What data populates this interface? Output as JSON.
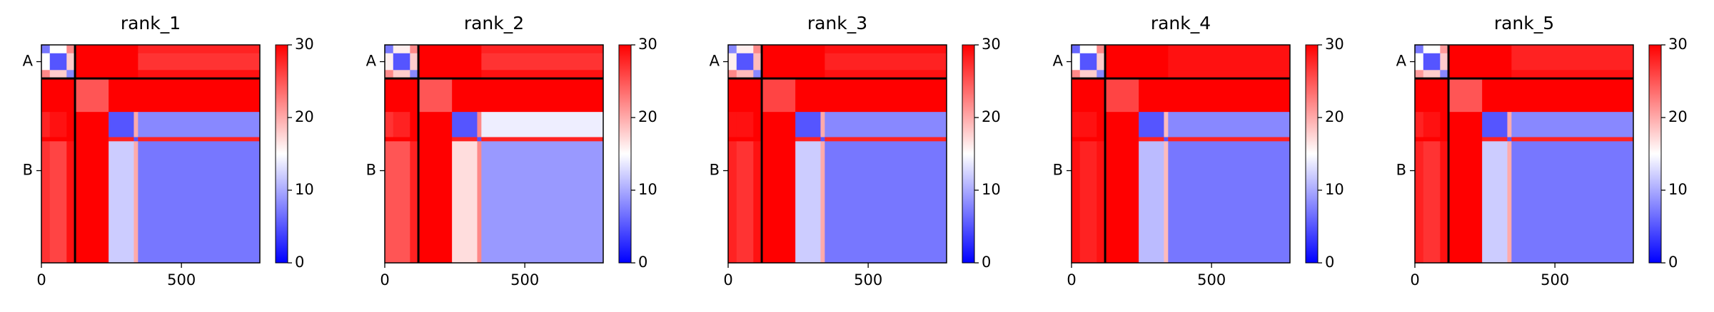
{
  "chart_data": [
    {
      "type": "heatmap",
      "title": "rank_1",
      "edges": [
        0,
        30,
        90,
        120,
        240,
        330,
        345,
        780
      ],
      "xlim": [
        0,
        780
      ],
      "ylim": [
        0,
        780
      ],
      "xticks": [
        0,
        500
      ],
      "yticks": [
        {
          "value": 60,
          "label": "A"
        },
        {
          "value": 450,
          "label": "B"
        }
      ],
      "chain_breaks": [
        120
      ],
      "clim": [
        0,
        30
      ],
      "cticks": [
        0,
        10,
        20,
        30
      ],
      "colormap": "bwr",
      "matrix": [
        [
          7,
          15,
          22,
          30,
          30,
          30,
          28
        ],
        [
          15,
          5,
          18,
          30,
          30,
          30,
          27
        ],
        [
          22,
          18,
          8,
          30,
          30,
          30,
          29
        ],
        [
          30,
          30,
          30,
          25,
          30,
          30,
          30
        ],
        [
          28,
          29,
          30,
          30,
          5,
          20,
          8
        ],
        [
          30,
          30,
          30,
          30,
          28,
          5,
          28
        ],
        [
          27,
          26,
          29,
          30,
          12,
          20,
          7
        ]
      ]
    },
    {
      "type": "heatmap",
      "title": "rank_2",
      "edges": [
        0,
        30,
        90,
        120,
        240,
        330,
        345,
        780
      ],
      "xlim": [
        0,
        780
      ],
      "ylim": [
        0,
        780
      ],
      "xticks": [
        0,
        500
      ],
      "yticks": [
        {
          "value": 60,
          "label": "A"
        },
        {
          "value": 450,
          "label": "B"
        }
      ],
      "chain_breaks": [
        120
      ],
      "clim": [
        0,
        30
      ],
      "cticks": [
        0,
        10,
        20,
        30
      ],
      "colormap": "bwr",
      "matrix": [
        [
          7,
          16,
          22,
          30,
          30,
          30,
          28
        ],
        [
          16,
          5,
          18,
          30,
          30,
          30,
          27
        ],
        [
          22,
          18,
          8,
          30,
          30,
          30,
          29
        ],
        [
          30,
          30,
          30,
          25,
          30,
          30,
          30
        ],
        [
          27,
          28,
          30,
          30,
          5,
          22,
          14
        ],
        [
          30,
          30,
          30,
          30,
          28,
          5,
          28
        ],
        [
          25,
          25,
          28,
          30,
          17,
          22,
          9
        ]
      ]
    },
    {
      "type": "heatmap",
      "title": "rank_3",
      "edges": [
        0,
        30,
        90,
        120,
        240,
        330,
        345,
        780
      ],
      "xlim": [
        0,
        780
      ],
      "ylim": [
        0,
        780
      ],
      "xticks": [
        0,
        500
      ],
      "yticks": [
        {
          "value": 60,
          "label": "A"
        },
        {
          "value": 450,
          "label": "B"
        }
      ],
      "chain_breaks": [
        120
      ],
      "clim": [
        0,
        30
      ],
      "cticks": [
        0,
        10,
        20,
        30
      ],
      "colormap": "bwr",
      "matrix": [
        [
          8,
          16,
          22,
          30,
          30,
          30,
          29
        ],
        [
          16,
          5,
          19,
          30,
          30,
          30,
          28
        ],
        [
          22,
          19,
          8,
          30,
          30,
          30,
          29
        ],
        [
          30,
          30,
          30,
          26,
          30,
          30,
          30
        ],
        [
          29,
          29,
          30,
          30,
          5,
          20,
          8
        ],
        [
          30,
          30,
          30,
          30,
          28,
          5,
          28
        ],
        [
          28,
          27,
          29,
          30,
          12,
          20,
          7
        ]
      ]
    },
    {
      "type": "heatmap",
      "title": "rank_4",
      "edges": [
        0,
        30,
        90,
        120,
        240,
        330,
        345,
        780
      ],
      "xlim": [
        0,
        780
      ],
      "ylim": [
        0,
        780
      ],
      "xticks": [
        0,
        500
      ],
      "yticks": [
        {
          "value": 60,
          "label": "A"
        },
        {
          "value": 450,
          "label": "B"
        }
      ],
      "chain_breaks": [
        120
      ],
      "clim": [
        0,
        30
      ],
      "cticks": [
        0,
        10,
        20,
        30
      ],
      "colormap": "bwr",
      "matrix": [
        [
          6,
          15,
          22,
          30,
          30,
          30,
          29
        ],
        [
          15,
          5,
          18,
          30,
          30,
          30,
          29
        ],
        [
          22,
          18,
          8,
          30,
          30,
          30,
          29
        ],
        [
          30,
          30,
          30,
          26,
          30,
          30,
          30
        ],
        [
          29,
          29,
          30,
          30,
          5,
          19,
          8
        ],
        [
          30,
          30,
          30,
          30,
          28,
          5,
          28
        ],
        [
          29,
          28,
          29,
          30,
          11,
          19,
          7
        ]
      ]
    },
    {
      "type": "heatmap",
      "title": "rank_5",
      "edges": [
        0,
        30,
        90,
        120,
        240,
        330,
        345,
        780
      ],
      "xlim": [
        0,
        780
      ],
      "ylim": [
        0,
        780
      ],
      "xticks": [
        0,
        500
      ],
      "yticks": [
        {
          "value": 60,
          "label": "A"
        },
        {
          "value": 450,
          "label": "B"
        }
      ],
      "chain_breaks": [
        120
      ],
      "clim": [
        0,
        30
      ],
      "cticks": [
        0,
        10,
        20,
        30
      ],
      "colormap": "bwr",
      "matrix": [
        [
          7,
          15,
          21,
          30,
          30,
          30,
          28
        ],
        [
          15,
          5,
          18,
          30,
          30,
          30,
          28
        ],
        [
          21,
          18,
          8,
          30,
          30,
          30,
          29
        ],
        [
          30,
          30,
          30,
          25,
          30,
          30,
          30
        ],
        [
          28,
          29,
          30,
          30,
          5,
          20,
          8
        ],
        [
          30,
          30,
          30,
          30,
          28,
          5,
          28
        ],
        [
          28,
          27,
          29,
          30,
          12,
          20,
          7
        ]
      ]
    }
  ]
}
